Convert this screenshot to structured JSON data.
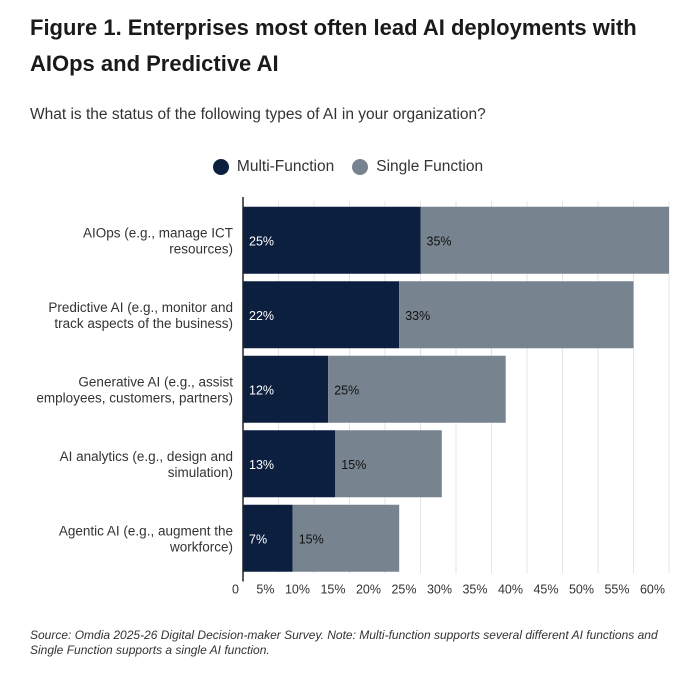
{
  "title": "Figure 1. Enterprises most often lead AI deployments with AIOps and Predictive AI",
  "subtitle": "What is the status of the following types of AI in your organization?",
  "source": "Source: Omdia 2025-26 Digital Decision-maker Survey. Note: Multi-function supports several different AI functions and Single Function supports a single AI function.",
  "chart_data": {
    "type": "bar",
    "orientation": "horizontal",
    "stacked": true,
    "categories": [
      [
        "AIOps (e.g., manage ICT",
        "resources)"
      ],
      [
        "Predictive AI (e.g., monitor and",
        "track aspects of the business)"
      ],
      [
        "Generative AI (e.g., assist",
        "employees, customers, partners)"
      ],
      [
        "AI analytics (e.g., design and",
        "simulation)"
      ],
      [
        "Agentic AI (e.g., augment the",
        "workforce)"
      ]
    ],
    "series": [
      {
        "name": "Multi-Function",
        "color": "#0d1f3f",
        "label_color": "#ffffff",
        "values": [
          25,
          22,
          12,
          13,
          7
        ]
      },
      {
        "name": "Single Function",
        "color": "#77848f",
        "label_color": "#111111",
        "values": [
          35,
          33,
          25,
          15,
          15
        ]
      }
    ],
    "xlim": [
      0,
      60
    ],
    "xticks": [
      0,
      5,
      10,
      15,
      20,
      25,
      30,
      35,
      40,
      45,
      50,
      55,
      60
    ],
    "tick_suffix": "%",
    "grid": true,
    "legend_position": "top-center"
  }
}
